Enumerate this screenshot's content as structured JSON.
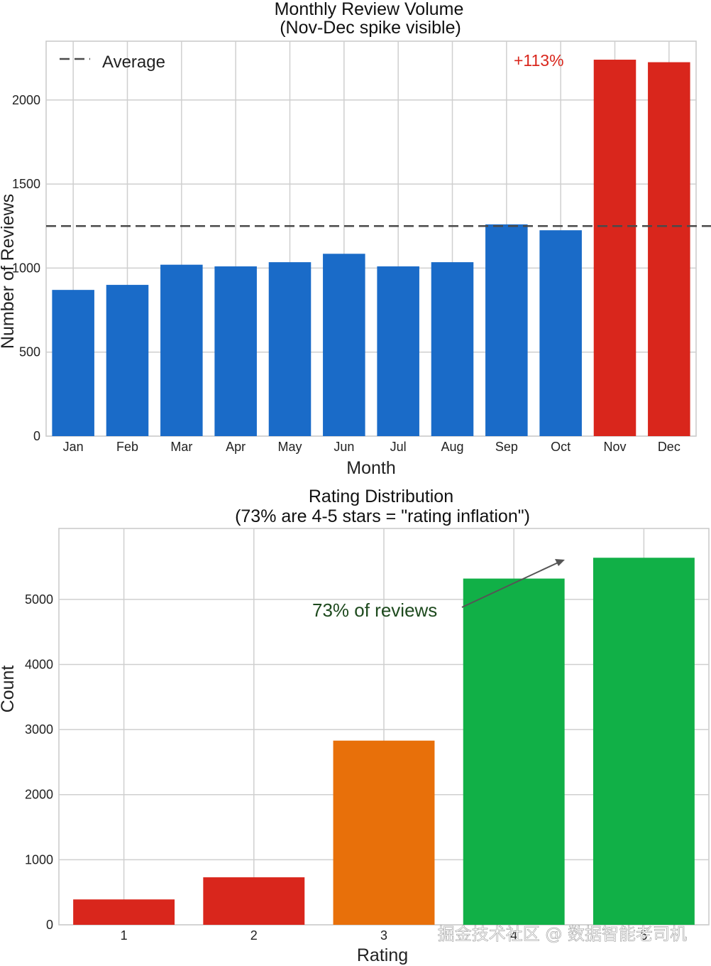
{
  "chart_data": [
    {
      "type": "bar",
      "title_line1": "Monthly Review Volume",
      "title_line2": "(Nov-Dec spike visible)",
      "xlabel": "Month",
      "ylabel": "Number of Reviews",
      "categories": [
        "Jan",
        "Feb",
        "Mar",
        "Apr",
        "May",
        "Jun",
        "Jul",
        "Aug",
        "Sep",
        "Oct",
        "Nov",
        "Dec"
      ],
      "values": [
        870,
        900,
        1020,
        1010,
        1035,
        1085,
        1010,
        1035,
        1260,
        1225,
        2240,
        2225
      ],
      "bar_colors": [
        "#1a6bc8",
        "#1a6bc8",
        "#1a6bc8",
        "#1a6bc8",
        "#1a6bc8",
        "#1a6bc8",
        "#1a6bc8",
        "#1a6bc8",
        "#1a6bc8",
        "#1a6bc8",
        "#d9261c",
        "#d9261c"
      ],
      "yticks": [
        0,
        500,
        1000,
        1500,
        2000
      ],
      "ylim": [
        0,
        2350
      ],
      "grid": true,
      "reference_line": {
        "value": 1250,
        "label": "Average",
        "style": "dashed",
        "color": "#4a4a4a"
      },
      "legend_position": "top-left",
      "annotation": {
        "text": "+113%",
        "color": "#d9261c"
      }
    },
    {
      "type": "bar",
      "title_line1": "Rating Distribution",
      "title_line2": "(73% are 4-5 stars = \"rating inflation\")",
      "xlabel": "Rating",
      "ylabel": "Count",
      "categories": [
        "1",
        "2",
        "3",
        "4",
        "5"
      ],
      "values": [
        390,
        730,
        2830,
        5320,
        5640
      ],
      "bar_colors": [
        "#d9261c",
        "#d9261c",
        "#e8700a",
        "#11b047",
        "#11b047"
      ],
      "yticks": [
        0,
        1000,
        2000,
        3000,
        4000,
        5000
      ],
      "ylim": [
        0,
        6090
      ],
      "grid": true,
      "annotation": {
        "text": "73% of reviews",
        "color": "#1e4a1e",
        "arrow_color": "#555555"
      }
    }
  ],
  "watermark": "掘金技术社区 @ 数据智能老司机"
}
